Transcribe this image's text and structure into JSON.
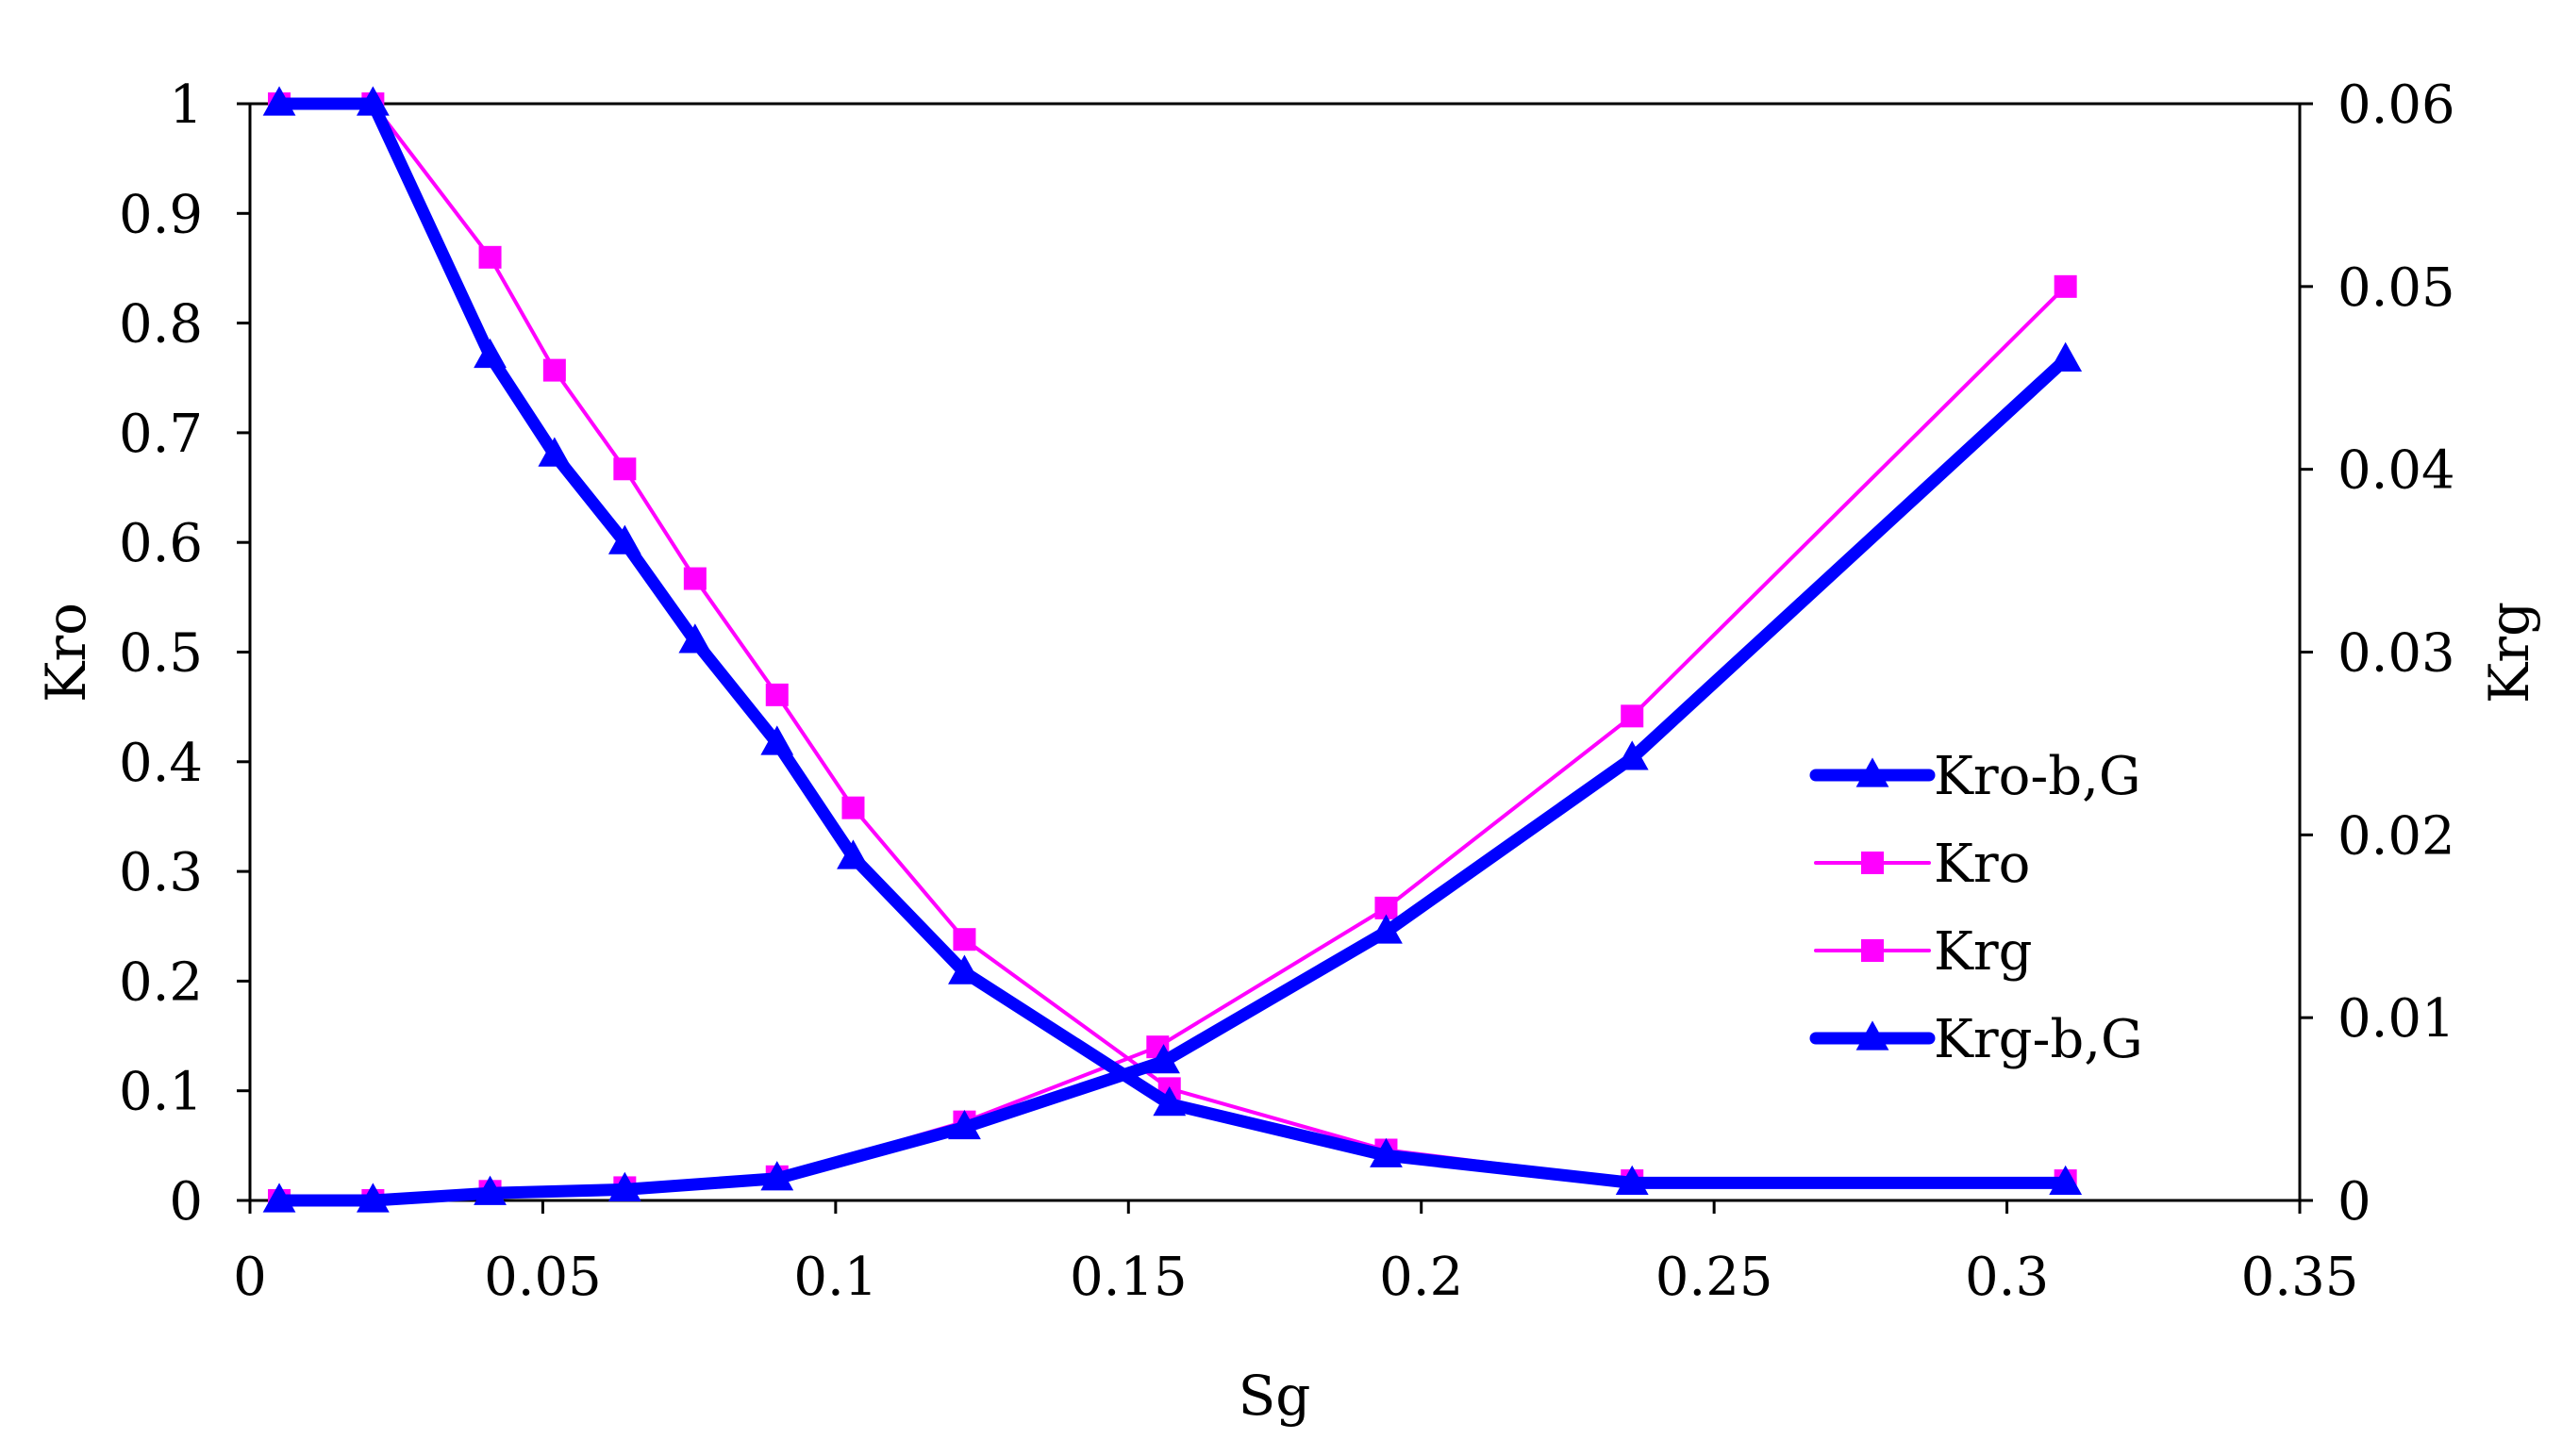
{
  "chart_data": {
    "type": "line",
    "title": "",
    "xlabel": "Sg",
    "ylabel": "Kro",
    "y2label": "Krg",
    "xlim": [
      0,
      0.35
    ],
    "ylim": [
      0,
      1
    ],
    "y2lim": [
      0,
      0.06
    ],
    "x_ticks": [
      "0",
      "0.05",
      "0.1",
      "0.15",
      "0.2",
      "0.25",
      "0.3",
      "0.35"
    ],
    "y_ticks": [
      "0",
      "0.1",
      "0.2",
      "0.3",
      "0.4",
      "0.5",
      "0.6",
      "0.7",
      "0.8",
      "0.9",
      "1"
    ],
    "y2_ticks": [
      "0",
      "0.01",
      "0.02",
      "0.03",
      "0.04",
      "0.05",
      "0.06"
    ],
    "legend_position": "right-middle",
    "series": [
      {
        "name": "Kro-b,G",
        "axis": "left",
        "color": "#0000FF",
        "marker": "triangle",
        "style": "thick",
        "x": [
          0.005,
          0.021,
          0.041,
          0.052,
          0.064,
          0.076,
          0.09,
          0.103,
          0.122,
          0.157,
          0.194,
          0.236,
          0.31
        ],
        "y": [
          1.0,
          1.0,
          0.77,
          0.68,
          0.6,
          0.51,
          0.417,
          0.313,
          0.208,
          0.088,
          0.041,
          0.016,
          0.016
        ]
      },
      {
        "name": "Kro",
        "axis": "left",
        "color": "#FF00FF",
        "marker": "square",
        "style": "thin",
        "x": [
          0.005,
          0.021,
          0.041,
          0.052,
          0.064,
          0.076,
          0.09,
          0.103,
          0.122,
          0.157,
          0.194,
          0.236,
          0.31
        ],
        "y": [
          1.0,
          1.0,
          0.86,
          0.757,
          0.667,
          0.567,
          0.461,
          0.358,
          0.238,
          0.102,
          0.046,
          0.018,
          0.018
        ]
      },
      {
        "name": "Krg",
        "axis": "right",
        "color": "#FF00FF",
        "marker": "square",
        "style": "thin",
        "x": [
          0.005,
          0.021,
          0.041,
          0.064,
          0.09,
          0.122,
          0.155,
          0.194,
          0.236,
          0.31
        ],
        "y": [
          0.0,
          0.0,
          0.0005,
          0.0007,
          0.0013,
          0.0043,
          0.0084,
          0.016,
          0.0265,
          0.05
        ]
      },
      {
        "name": "Krg-b,G",
        "axis": "right",
        "color": "#0000FF",
        "marker": "triangle",
        "style": "thick",
        "x": [
          0.005,
          0.021,
          0.041,
          0.064,
          0.09,
          0.122,
          0.156,
          0.194,
          0.236,
          0.31
        ],
        "y": [
          0.0,
          0.0,
          0.0004,
          0.0006,
          0.0012,
          0.004,
          0.0076,
          0.0147,
          0.0242,
          0.046
        ]
      }
    ]
  }
}
